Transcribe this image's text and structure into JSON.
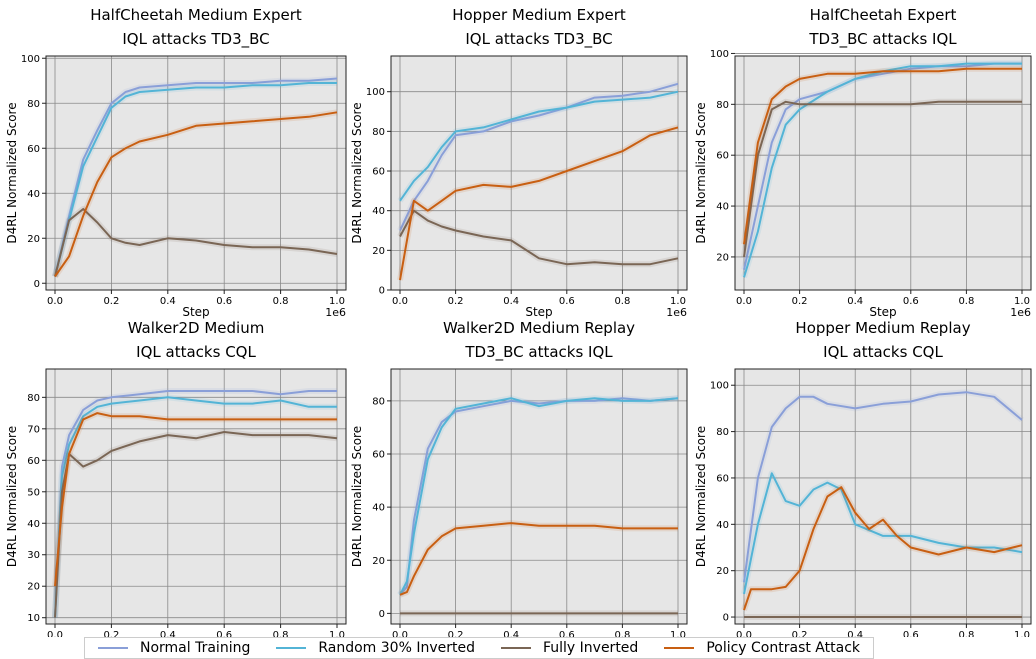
{
  "legend": [
    {
      "label": "Normal Training",
      "color": "#8a9fd8"
    },
    {
      "label": "Random 30% Inverted",
      "color": "#53b4d6"
    },
    {
      "label": "Fully Inverted",
      "color": "#7a6655"
    },
    {
      "label": "Policy Contrast Attack",
      "color": "#c85f12"
    }
  ],
  "chart_data": [
    {
      "type": "line",
      "title": [
        "HalfCheetah Medium Expert",
        "IQL attacks TD3_BC"
      ],
      "xlabel": "Step",
      "ylabel": "D4RL Normalized Score",
      "x_ticks": [
        "0.0",
        "0.2",
        "0.4",
        "0.6",
        "0.8",
        "1.0"
      ],
      "x_offset_label": "1e6",
      "xlim": [
        0,
        1000000
      ],
      "ylim": [
        -3,
        101
      ],
      "y_ticks": [
        0,
        20,
        40,
        60,
        80,
        100
      ],
      "grid": true,
      "series": [
        {
          "name": "Normal Training",
          "color": "#8a9fd8",
          "x": [
            0,
            50000,
            100000,
            150000,
            200000,
            250000,
            300000,
            400000,
            500000,
            600000,
            700000,
            800000,
            900000,
            1000000
          ],
          "y": [
            3,
            30,
            55,
            68,
            80,
            85,
            87,
            88,
            89,
            89,
            89,
            90,
            90,
            91
          ]
        },
        {
          "name": "Random 30% Inverted",
          "color": "#53b4d6",
          "x": [
            0,
            50000,
            100000,
            150000,
            200000,
            250000,
            300000,
            400000,
            500000,
            600000,
            700000,
            800000,
            900000,
            1000000
          ],
          "y": [
            3,
            28,
            52,
            65,
            78,
            83,
            85,
            86,
            87,
            87,
            88,
            88,
            89,
            89
          ]
        },
        {
          "name": "Fully Inverted",
          "color": "#7a6655",
          "x": [
            0,
            50000,
            100000,
            150000,
            200000,
            250000,
            300000,
            400000,
            500000,
            600000,
            700000,
            800000,
            900000,
            1000000
          ],
          "y": [
            3,
            28,
            33,
            27,
            20,
            18,
            17,
            20,
            19,
            17,
            16,
            16,
            15,
            13
          ]
        },
        {
          "name": "Policy Contrast Attack",
          "color": "#c85f12",
          "x": [
            0,
            50000,
            100000,
            150000,
            200000,
            250000,
            300000,
            400000,
            500000,
            600000,
            700000,
            800000,
            900000,
            1000000
          ],
          "y": [
            3,
            12,
            30,
            45,
            56,
            60,
            63,
            66,
            70,
            71,
            72,
            73,
            74,
            76
          ]
        }
      ]
    },
    {
      "type": "line",
      "title": [
        "Hopper Medium Expert",
        "IQL attacks TD3_BC"
      ],
      "xlabel": "Step",
      "ylabel": "D4RL Normalized Score",
      "x_ticks": [
        "0.0",
        "0.2",
        "0.4",
        "0.6",
        "0.8",
        "1.0"
      ],
      "x_offset_label": "1e6",
      "xlim": [
        0,
        1000000
      ],
      "ylim": [
        0,
        118
      ],
      "y_ticks": [
        0,
        20,
        40,
        60,
        80,
        100
      ],
      "grid": true,
      "series": [
        {
          "name": "Normal Training",
          "color": "#8a9fd8",
          "x": [
            0,
            50000,
            100000,
            150000,
            200000,
            300000,
            400000,
            500000,
            600000,
            700000,
            800000,
            900000,
            1000000
          ],
          "y": [
            30,
            45,
            55,
            68,
            78,
            80,
            85,
            88,
            92,
            97,
            98,
            100,
            104
          ]
        },
        {
          "name": "Random 30% Inverted",
          "color": "#53b4d6",
          "x": [
            0,
            50000,
            100000,
            150000,
            200000,
            300000,
            400000,
            500000,
            600000,
            700000,
            800000,
            900000,
            1000000
          ],
          "y": [
            45,
            55,
            62,
            72,
            80,
            82,
            86,
            90,
            92,
            95,
            96,
            97,
            100
          ]
        },
        {
          "name": "Fully Inverted",
          "color": "#7a6655",
          "x": [
            0,
            50000,
            100000,
            150000,
            200000,
            300000,
            400000,
            500000,
            600000,
            700000,
            800000,
            900000,
            1000000
          ],
          "y": [
            27,
            40,
            35,
            32,
            30,
            27,
            25,
            16,
            13,
            14,
            13,
            13,
            16
          ]
        },
        {
          "name": "Policy Contrast Attack",
          "color": "#c85f12",
          "x": [
            0,
            50000,
            100000,
            150000,
            200000,
            300000,
            400000,
            500000,
            600000,
            700000,
            800000,
            900000,
            1000000
          ],
          "y": [
            5,
            45,
            40,
            45,
            50,
            53,
            52,
            55,
            60,
            65,
            70,
            78,
            82
          ]
        }
      ]
    },
    {
      "type": "line",
      "title": [
        "HalfCheetah Expert",
        "TD3_BC attacks IQL"
      ],
      "xlabel": "Step",
      "ylabel": "D4RL Normalized Score",
      "x_ticks": [
        "0.0",
        "0.2",
        "0.4",
        "0.6",
        "0.8",
        "1.0"
      ],
      "x_offset_label": "1e6",
      "xlim": [
        0,
        1000000
      ],
      "ylim": [
        7,
        99
      ],
      "y_ticks": [
        20,
        40,
        60,
        80,
        100
      ],
      "grid": true,
      "series": [
        {
          "name": "Normal Training",
          "color": "#8a9fd8",
          "x": [
            0,
            50000,
            100000,
            150000,
            200000,
            300000,
            400000,
            500000,
            600000,
            700000,
            800000,
            900000,
            1000000
          ],
          "y": [
            15,
            40,
            65,
            78,
            82,
            85,
            90,
            92,
            94,
            95,
            95,
            96,
            96
          ]
        },
        {
          "name": "Random 30% Inverted",
          "color": "#53b4d6",
          "x": [
            0,
            50000,
            100000,
            150000,
            200000,
            300000,
            400000,
            500000,
            600000,
            700000,
            800000,
            900000,
            1000000
          ],
          "y": [
            12,
            30,
            55,
            72,
            78,
            85,
            90,
            93,
            95,
            95,
            96,
            96,
            96
          ]
        },
        {
          "name": "Fully Inverted",
          "color": "#7a6655",
          "x": [
            0,
            50000,
            100000,
            150000,
            200000,
            300000,
            400000,
            500000,
            600000,
            700000,
            800000,
            900000,
            1000000
          ],
          "y": [
            20,
            60,
            78,
            81,
            80,
            80,
            80,
            80,
            80,
            81,
            81,
            81,
            81
          ]
        },
        {
          "name": "Policy Contrast Attack",
          "color": "#c85f12",
          "x": [
            0,
            50000,
            100000,
            150000,
            200000,
            300000,
            400000,
            500000,
            600000,
            700000,
            800000,
            900000,
            1000000
          ],
          "y": [
            25,
            65,
            82,
            87,
            90,
            92,
            92,
            93,
            93,
            93,
            94,
            94,
            94
          ]
        }
      ]
    },
    {
      "type": "line",
      "title": [
        "Walker2D Medium",
        "IQL attacks CQL"
      ],
      "xlabel": "Step",
      "ylabel": "D4RL Normalized Score",
      "x_ticks": [
        "0.0",
        "0.2",
        "0.4",
        "0.6",
        "0.8",
        "1.0"
      ],
      "x_offset_label": "1e6",
      "xlim": [
        0,
        1000000
      ],
      "ylim": [
        8,
        89
      ],
      "y_ticks": [
        10,
        20,
        30,
        40,
        50,
        60,
        70,
        80
      ],
      "grid": true,
      "series": [
        {
          "name": "Normal Training",
          "color": "#8a9fd8",
          "x": [
            0,
            25000,
            50000,
            100000,
            150000,
            200000,
            300000,
            400000,
            500000,
            600000,
            700000,
            800000,
            900000,
            1000000
          ],
          "y": [
            10,
            58,
            68,
            76,
            79,
            80,
            81,
            82,
            82,
            82,
            82,
            81,
            82,
            82
          ]
        },
        {
          "name": "Random 30% Inverted",
          "color": "#53b4d6",
          "x": [
            0,
            25000,
            50000,
            100000,
            150000,
            200000,
            300000,
            400000,
            500000,
            600000,
            700000,
            800000,
            900000,
            1000000
          ],
          "y": [
            10,
            55,
            65,
            74,
            77,
            78,
            79,
            80,
            79,
            78,
            78,
            79,
            77,
            77
          ]
        },
        {
          "name": "Fully Inverted",
          "color": "#7a6655",
          "x": [
            0,
            25000,
            50000,
            100000,
            150000,
            200000,
            300000,
            400000,
            500000,
            600000,
            700000,
            800000,
            900000,
            1000000
          ],
          "y": [
            10,
            50,
            62,
            58,
            60,
            63,
            66,
            68,
            67,
            69,
            68,
            68,
            68,
            67
          ]
        },
        {
          "name": "Policy Contrast Attack",
          "color": "#c85f12",
          "x": [
            0,
            25000,
            50000,
            100000,
            150000,
            200000,
            300000,
            400000,
            500000,
            600000,
            700000,
            800000,
            900000,
            1000000
          ],
          "y": [
            20,
            45,
            62,
            73,
            75,
            74,
            74,
            73,
            73,
            73,
            73,
            73,
            73,
            73
          ]
        }
      ]
    },
    {
      "type": "line",
      "title": [
        "Walker2D Medium Replay",
        "TD3_BC attacks IQL"
      ],
      "xlabel": "Step",
      "ylabel": "D4RL Normalized Score",
      "x_ticks": [
        "0.0",
        "0.2",
        "0.4",
        "0.6",
        "0.8",
        "1.0"
      ],
      "x_offset_label": "1e6",
      "xlim": [
        0,
        1000000
      ],
      "ylim": [
        -4,
        92
      ],
      "y_ticks": [
        0,
        20,
        40,
        60,
        80
      ],
      "grid": true,
      "series": [
        {
          "name": "Normal Training",
          "color": "#8a9fd8",
          "x": [
            0,
            25000,
            50000,
            100000,
            150000,
            200000,
            300000,
            400000,
            500000,
            600000,
            700000,
            800000,
            900000,
            1000000
          ],
          "y": [
            7,
            10,
            35,
            62,
            72,
            76,
            78,
            80,
            79,
            80,
            80,
            81,
            80,
            81
          ]
        },
        {
          "name": "Random 30% Inverted",
          "color": "#53b4d6",
          "x": [
            0,
            25000,
            50000,
            100000,
            150000,
            200000,
            300000,
            400000,
            500000,
            600000,
            700000,
            800000,
            900000,
            1000000
          ],
          "y": [
            7,
            12,
            30,
            58,
            70,
            77,
            79,
            81,
            78,
            80,
            81,
            80,
            80,
            81
          ]
        },
        {
          "name": "Fully Inverted",
          "color": "#7a6655",
          "x": [
            0,
            200000,
            400000,
            600000,
            800000,
            1000000
          ],
          "y": [
            0,
            0,
            0,
            0,
            0,
            0
          ]
        },
        {
          "name": "Policy Contrast Attack",
          "color": "#c85f12",
          "x": [
            0,
            25000,
            50000,
            100000,
            150000,
            200000,
            300000,
            400000,
            500000,
            600000,
            700000,
            800000,
            900000,
            1000000
          ],
          "y": [
            7,
            8,
            14,
            24,
            29,
            32,
            33,
            34,
            33,
            33,
            33,
            32,
            32,
            32
          ]
        }
      ]
    },
    {
      "type": "line",
      "title": [
        "Hopper Medium Replay",
        "IQL attacks CQL"
      ],
      "xlabel": "Step",
      "ylabel": "D4RL Normalized Score",
      "x_ticks": [
        "0.0",
        "0.2",
        "0.4",
        "0.6",
        "0.8",
        "1.0"
      ],
      "x_offset_label": "1e6",
      "xlim": [
        0,
        1000000
      ],
      "ylim": [
        -3,
        107
      ],
      "y_ticks": [
        0,
        20,
        40,
        60,
        80,
        100
      ],
      "grid": true,
      "series": [
        {
          "name": "Normal Training",
          "color": "#8a9fd8",
          "x": [
            0,
            50000,
            100000,
            150000,
            200000,
            250000,
            300000,
            400000,
            500000,
            600000,
            700000,
            800000,
            900000,
            1000000
          ],
          "y": [
            15,
            60,
            82,
            90,
            95,
            95,
            92,
            90,
            92,
            93,
            96,
            97,
            95,
            85
          ]
        },
        {
          "name": "Random 30% Inverted",
          "color": "#53b4d6",
          "x": [
            0,
            50000,
            100000,
            150000,
            200000,
            250000,
            300000,
            350000,
            400000,
            500000,
            600000,
            700000,
            800000,
            900000,
            1000000
          ],
          "y": [
            10,
            40,
            62,
            50,
            48,
            55,
            58,
            55,
            40,
            35,
            35,
            32,
            30,
            30,
            28
          ]
        },
        {
          "name": "Fully Inverted",
          "color": "#7a6655",
          "x": [
            0,
            200000,
            400000,
            600000,
            800000,
            1000000
          ],
          "y": [
            0,
            0,
            0,
            0,
            0,
            0
          ]
        },
        {
          "name": "Policy Contrast Attack",
          "color": "#c85f12",
          "x": [
            0,
            25000,
            100000,
            150000,
            200000,
            250000,
            300000,
            350000,
            400000,
            450000,
            500000,
            550000,
            600000,
            700000,
            800000,
            900000,
            1000000
          ],
          "y": [
            3,
            12,
            12,
            13,
            20,
            38,
            52,
            56,
            45,
            38,
            42,
            35,
            30,
            27,
            30,
            28,
            31
          ]
        }
      ]
    }
  ]
}
